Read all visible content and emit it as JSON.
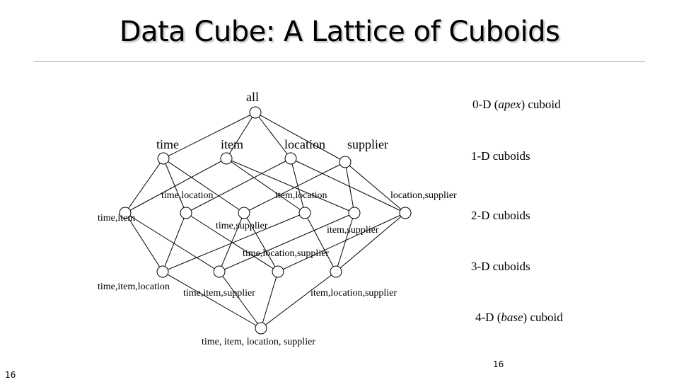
{
  "title": "Data Cube: A Lattice of Cuboids",
  "levels": {
    "apex": {
      "pre": "0-D (",
      "em": "apex",
      "post": ") cuboid"
    },
    "one_d": "1-D cuboids",
    "two_d": "2-D cuboids",
    "three_d": "3-D cuboids",
    "base": {
      "pre": "4-D (",
      "em": "base",
      "post": ") cuboid"
    }
  },
  "nodes": [
    {
      "id": "all",
      "label": "all"
    },
    {
      "id": "time",
      "label": "time"
    },
    {
      "id": "item",
      "label": "item"
    },
    {
      "id": "location",
      "label": "location"
    },
    {
      "id": "supplier",
      "label": "supplier"
    },
    {
      "id": "time_item",
      "label": "time,item"
    },
    {
      "id": "time_location",
      "label": "time,location"
    },
    {
      "id": "time_supplier",
      "label": "time,supplier"
    },
    {
      "id": "item_location",
      "label": "item,location"
    },
    {
      "id": "item_supplier",
      "label": "item,supplier"
    },
    {
      "id": "location_supplier",
      "label": "location,supplier"
    },
    {
      "id": "time_item_location",
      "label": "time,item,location"
    },
    {
      "id": "time_item_supplier",
      "label": "time,item,supplier"
    },
    {
      "id": "time_location_supplier",
      "label": "time,location,supplier"
    },
    {
      "id": "item_location_supplier",
      "label": "item,location,supplier"
    },
    {
      "id": "base",
      "label": "time, item, location, supplier"
    }
  ],
  "edges": [
    [
      "all",
      "time"
    ],
    [
      "all",
      "item"
    ],
    [
      "all",
      "location"
    ],
    [
      "all",
      "supplier"
    ],
    [
      "time",
      "time_item"
    ],
    [
      "time",
      "time_location"
    ],
    [
      "time",
      "time_supplier"
    ],
    [
      "item",
      "time_item"
    ],
    [
      "item",
      "item_location"
    ],
    [
      "item",
      "item_supplier"
    ],
    [
      "location",
      "time_location"
    ],
    [
      "location",
      "item_location"
    ],
    [
      "location",
      "location_supplier"
    ],
    [
      "supplier",
      "time_supplier"
    ],
    [
      "supplier",
      "item_supplier"
    ],
    [
      "supplier",
      "location_supplier"
    ],
    [
      "time_item",
      "time_item_location"
    ],
    [
      "time_item",
      "time_item_supplier"
    ],
    [
      "time_location",
      "time_item_location"
    ],
    [
      "time_location",
      "time_location_supplier"
    ],
    [
      "time_supplier",
      "time_item_supplier"
    ],
    [
      "time_supplier",
      "time_location_supplier"
    ],
    [
      "item_location",
      "time_item_location"
    ],
    [
      "item_location",
      "item_location_supplier"
    ],
    [
      "item_supplier",
      "time_item_supplier"
    ],
    [
      "item_supplier",
      "item_location_supplier"
    ],
    [
      "location_supplier",
      "time_location_supplier"
    ],
    [
      "location_supplier",
      "item_location_supplier"
    ],
    [
      "time_item_location",
      "base"
    ],
    [
      "time_item_supplier",
      "base"
    ],
    [
      "time_location_supplier",
      "base"
    ],
    [
      "item_location_supplier",
      "base"
    ]
  ],
  "page_number_bottom": "16",
  "page_number_right": "16"
}
